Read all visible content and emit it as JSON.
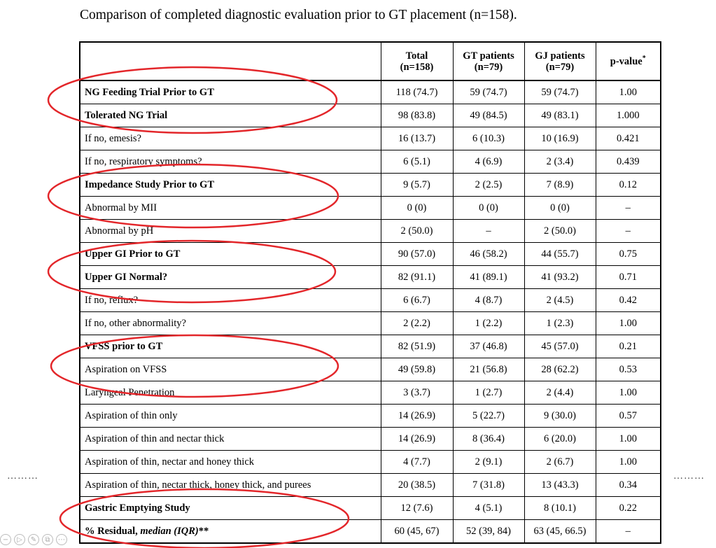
{
  "caption": "Comparison of completed diagnostic evaluation prior to GT placement (n=158).",
  "table": {
    "headers": {
      "total": [
        "Total",
        "(n=158)"
      ],
      "gt": [
        "GT patients",
        "(n=79)"
      ],
      "gj": [
        "GJ patients",
        "(n=79)"
      ],
      "p": "p-value",
      "p_sup": "*"
    },
    "rows": [
      {
        "label": "NG Feeding Trial Prior to GT",
        "total": "118 (74.7)",
        "gt": "59 (74.7)",
        "gj": "59 (74.7)",
        "p": "1.00"
      },
      {
        "label": "Tolerated NG Trial",
        "total": "98 (83.8)",
        "gt": "49 (84.5)",
        "gj": "49 (83.1)",
        "p": "1.000"
      },
      {
        "label": "If no, emesis?",
        "total": "16 (13.7)",
        "gt": "6 (10.3)",
        "gj": "10 (16.9)",
        "p": "0.421"
      },
      {
        "label": "If no, respiratory symptoms?",
        "total": "6 (5.1)",
        "gt": "4 (6.9)",
        "gj": "2 (3.4)",
        "p": "0.439"
      },
      {
        "label": "Impedance Study Prior to GT",
        "total": "9 (5.7)",
        "gt": "2 (2.5)",
        "gj": "7 (8.9)",
        "p": "0.12"
      },
      {
        "label": "Abnormal by MII",
        "total": "0 (0)",
        "gt": "0 (0)",
        "gj": "0 (0)",
        "p": "–"
      },
      {
        "label": "Abnormal by pH",
        "total": "2 (50.0)",
        "gt": "–",
        "gj": "2 (50.0)",
        "p": "–"
      },
      {
        "label": "Upper GI Prior to GT",
        "total": "90 (57.0)",
        "gt": "46 (58.2)",
        "gj": "44 (55.7)",
        "p": "0.75"
      },
      {
        "label": "Upper GI Normal?",
        "total": "82 (91.1)",
        "gt": "41 (89.1)",
        "gj": "41 (93.2)",
        "p": "0.71"
      },
      {
        "label": "If no, reflux?",
        "total": "6 (6.7)",
        "gt": "4 (8.7)",
        "gj": "2 (4.5)",
        "p": "0.42"
      },
      {
        "label": "If no, other abnormality?",
        "total": "2 (2.2)",
        "gt": "1 (2.2)",
        "gj": "1 (2.3)",
        "p": "1.00"
      },
      {
        "label": "VFSS prior to GT",
        "total": "82 (51.9)",
        "gt": "37 (46.8)",
        "gj": "45 (57.0)",
        "p": "0.21"
      },
      {
        "label": "Aspiration on VFSS",
        "total": "49 (59.8)",
        "gt": "21 (56.8)",
        "gj": "28 (62.2)",
        "p": "0.53"
      },
      {
        "label": "Laryngeal Penetration",
        "total": "3 (3.7)",
        "gt": "1 (2.7)",
        "gj": "2 (4.4)",
        "p": "1.00"
      },
      {
        "label": "Aspiration of thin only",
        "total": "14 (26.9)",
        "gt": "5 (22.7)",
        "gj": "9 (30.0)",
        "p": "0.57"
      },
      {
        "label": "Aspiration of thin and nectar thick",
        "total": "14 (26.9)",
        "gt": "8 (36.4)",
        "gj": "6 (20.0)",
        "p": "1.00"
      },
      {
        "label": "Aspiration of thin, nectar and honey thick",
        "total": "4 (7.7)",
        "gt": "2 (9.1)",
        "gj": "2 (6.7)",
        "p": "1.00"
      },
      {
        "label": "Aspiration of thin, nectar thick, honey thick, and purees",
        "total": "20 (38.5)",
        "gt": "7 (31.8)",
        "gj": "13 (43.3)",
        "p": "0.34"
      },
      {
        "label": "Gastric Emptying Study",
        "total": "12 (7.6)",
        "gt": "4 (5.1)",
        "gj": "8 (10.1)",
        "p": "0.22"
      },
      {
        "label_main": "% Residual, ",
        "label_em": "median (IQR)",
        "label_tail": "**",
        "total": "60 (45, 67)",
        "gt": "52 (39, 84)",
        "gj": "63 (45, 66.5)",
        "p": "–"
      }
    ]
  },
  "page_dots": "………",
  "annotation_color": "#e3262a",
  "pager_icons": [
    "zoom-out-icon",
    "next-icon",
    "edit-icon",
    "copy-icon",
    "more-icon"
  ]
}
